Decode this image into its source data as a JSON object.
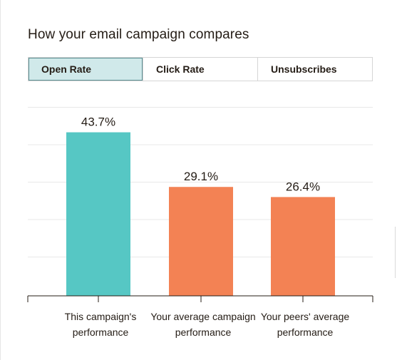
{
  "header": {
    "title": "How your email campaign compares"
  },
  "tabs": [
    {
      "label": "Open Rate",
      "active": true
    },
    {
      "label": "Click Rate",
      "active": false
    },
    {
      "label": "Unsubscribes",
      "active": false
    }
  ],
  "colors": {
    "campaign": "#56c7c4",
    "comparison": "#f38254",
    "grid": "#e8e8e8",
    "axis": "#241c15"
  },
  "chart_data": {
    "type": "bar",
    "categories": [
      [
        "This campaign's",
        "performance"
      ],
      [
        "Your average campaign",
        "performance"
      ],
      [
        "Your peers' average",
        "performance"
      ]
    ],
    "values": [
      43.7,
      29.1,
      26.4
    ],
    "value_labels": [
      "43.7%",
      "29.1%",
      "26.4%"
    ],
    "ylim": [
      0,
      50
    ],
    "grid": true,
    "legend": "none"
  }
}
